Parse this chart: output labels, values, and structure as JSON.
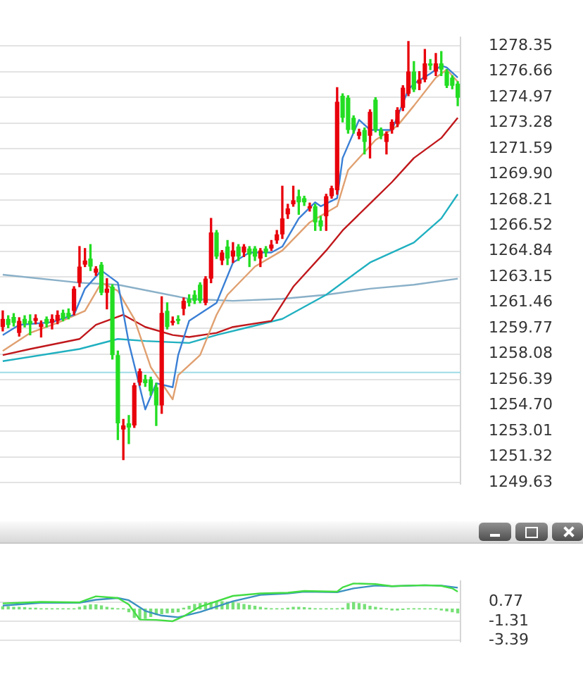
{
  "chart_data": [
    {
      "type": "candlestick",
      "categories": [
        null,
        null,
        null,
        null,
        null,
        null,
        null,
        null,
        null,
        null,
        null,
        null,
        null,
        null,
        null,
        null,
        null,
        null,
        null,
        null,
        null,
        null,
        null,
        null,
        null,
        null,
        null,
        null,
        null,
        null,
        null,
        null,
        null,
        null,
        null,
        null,
        null,
        null,
        null,
        null,
        null,
        null,
        null,
        null,
        null,
        null,
        null,
        null,
        null,
        null,
        null,
        null,
        null,
        null,
        null,
        null,
        null,
        null,
        null,
        null,
        null,
        null,
        null,
        null,
        null,
        null,
        null,
        null,
        null,
        null,
        null,
        null,
        null,
        null,
        null,
        null,
        null,
        null,
        null,
        null,
        null,
        null,
        null,
        null
      ],
      "ohlc": [
        [
          1259.86,
          1260.92,
          1259.6,
          1260.39
        ],
        [
          1260.39,
          1260.6,
          1259.81,
          1259.99
        ],
        [
          1260.52,
          1260.74,
          1259.92,
          1260.13
        ],
        [
          1259.47,
          1260.47,
          1259.26,
          1260.26
        ],
        [
          1260.39,
          1260.6,
          1259.86,
          1260.07
        ],
        [
          1260.26,
          1260.66,
          1259.34,
          1260.07
        ],
        [
          1260.26,
          1260.66,
          1260.07,
          1260.45
        ],
        [
          1259.86,
          1260.26,
          1259.2,
          1260.07
        ],
        [
          1260.39,
          1260.52,
          1259.86,
          1260.07
        ],
        [
          1260.13,
          1260.66,
          1259.73,
          1260.39
        ],
        [
          1260.26,
          1260.92,
          1260.07,
          1260.66
        ],
        [
          1260.79,
          1260.97,
          1260.26,
          1260.39
        ],
        [
          1260.79,
          1261.05,
          1260.39,
          1260.52
        ],
        [
          1260.92,
          1262.51,
          1260.66,
          1262.38
        ],
        [
          1262.77,
          1265.15,
          1262.51,
          1263.83
        ],
        [
          1263.96,
          1265.02,
          1263.83,
          1264.23
        ],
        [
          1264.36,
          1265.28,
          1263.57,
          1263.83
        ],
        [
          1263.43,
          1263.83,
          1263.25,
          1263.7
        ],
        [
          1263.96,
          1264.1,
          1261.98,
          1262.11
        ],
        [
          1262.11,
          1263.04,
          1261.05,
          1262.38
        ],
        [
          1262.51,
          1262.64,
          1257.75,
          1258.01
        ],
        [
          1258.01,
          1258.28,
          1252.46,
          1253.52
        ],
        [
          1253.12,
          1253.78,
          1251.14,
          1253.38
        ],
        [
          1253.52,
          1254.04,
          1252.19,
          1253.25
        ],
        [
          1253.38,
          1256.16,
          1253.25,
          1256.03
        ],
        [
          1256.21,
          1257.09,
          1256.03,
          1256.95
        ],
        [
          1256.42,
          1256.69,
          1255.95,
          1256.16
        ],
        [
          1256.42,
          1256.56,
          1255.37,
          1255.63
        ],
        [
          1255.9,
          1256.16,
          1253.38,
          1254.71
        ],
        [
          1254.71,
          1261.85,
          1254.18,
          1260.79
        ],
        [
          1260.92,
          1261.45,
          1259.73,
          1259.86
        ],
        [
          1260.13,
          1260.52,
          1259.99,
          1260.26
        ],
        [
          1260.39,
          1260.6,
          1260.07,
          1260.26
        ],
        [
          1261.05,
          1261.77,
          1260.66,
          1261.58
        ],
        [
          1261.71,
          1261.98,
          1261.24,
          1261.45
        ],
        [
          1261.98,
          1262.24,
          1261.4,
          1261.58
        ],
        [
          1262.64,
          1262.77,
          1261.45,
          1261.58
        ],
        [
          1261.45,
          1263.17,
          1261.32,
          1263.04
        ],
        [
          1263.04,
          1267.0,
          1262.77,
          1266.08
        ],
        [
          1266.08,
          1266.21,
          1264.36,
          1264.49
        ],
        [
          1264.23,
          1264.89,
          1263.96,
          1264.76
        ],
        [
          1265.15,
          1265.55,
          1263.96,
          1264.36
        ],
        [
          1264.49,
          1265.41,
          1264.1,
          1264.89
        ],
        [
          1265.15,
          1265.28,
          1264.23,
          1264.49
        ],
        [
          1264.76,
          1265.28,
          1264.49,
          1265.15
        ],
        [
          1265.02,
          1265.15,
          1263.83,
          1264.62
        ],
        [
          1265.02,
          1265.15,
          1264.23,
          1264.49
        ],
        [
          1264.36,
          1265.02,
          1263.83,
          1264.89
        ],
        [
          1265.02,
          1265.15,
          1264.49,
          1264.76
        ],
        [
          1265.02,
          1265.55,
          1264.89,
          1265.28
        ],
        [
          1265.55,
          1266.21,
          1265.36,
          1265.95
        ],
        [
          1265.95,
          1269.12,
          1265.68,
          1267.0
        ],
        [
          1267.27,
          1267.93,
          1267.0,
          1267.66
        ],
        [
          1267.93,
          1269.12,
          1267.8,
          1268.19
        ],
        [
          1268.46,
          1268.86,
          1267.27,
          1268.06
        ],
        [
          1268.33,
          1268.46,
          1267.85,
          1268.06
        ],
        [
          1267.66,
          1268.01,
          1267.48,
          1267.8
        ],
        [
          1267.8,
          1267.93,
          1266.21,
          1266.74
        ],
        [
          1266.87,
          1267.14,
          1266.21,
          1266.47
        ],
        [
          1267.14,
          1268.59,
          1266.21,
          1268.46
        ],
        [
          1268.46,
          1269.12,
          1268.33,
          1268.99
        ],
        [
          1268.86,
          1275.6,
          1268.59,
          1274.67
        ],
        [
          1275.07,
          1275.2,
          1273.35,
          1273.62
        ],
        [
          1274.94,
          1275.07,
          1272.61,
          1272.82
        ],
        [
          1273.62,
          1273.75,
          1272.61,
          1272.82
        ],
        [
          1272.43,
          1272.87,
          1272.24,
          1272.69
        ],
        [
          1272.82,
          1272.95,
          1271.24,
          1272.03
        ],
        [
          1272.43,
          1274.14,
          1270.97,
          1274.01
        ],
        [
          1274.81,
          1274.94,
          1272.69,
          1272.82
        ],
        [
          1272.82,
          1272.95,
          1272.24,
          1272.43
        ],
        [
          1272.03,
          1272.69,
          1271.24,
          1272.56
        ],
        [
          1272.82,
          1273.48,
          1272.61,
          1273.35
        ],
        [
          1273.22,
          1274.28,
          1273.03,
          1274.14
        ],
        [
          1274.28,
          1275.73,
          1274.09,
          1275.6
        ],
        [
          1275.2,
          1278.64,
          1275.07,
          1276.66
        ],
        [
          1276.66,
          1277.32,
          1275.34,
          1275.47
        ],
        [
          1275.86,
          1276.66,
          1275.47,
          1276.13
        ],
        [
          1276.13,
          1278.11,
          1275.99,
          1277.19
        ],
        [
          1277.19,
          1277.45,
          1276.79,
          1277.05
        ],
        [
          1276.66,
          1277.85,
          1276.39,
          1277.19
        ],
        [
          1277.19,
          1277.98,
          1276.39,
          1276.79
        ],
        [
          1276.66,
          1276.79,
          1275.6,
          1275.73
        ],
        [
          1276.26,
          1276.39,
          1275.52,
          1275.73
        ],
        [
          1275.86,
          1275.99,
          1274.41,
          1274.94
        ]
      ],
      "colors": [
        "#e8000b",
        "#22dd22",
        "#22dd22",
        "#e8000b",
        "#22dd22",
        "#22dd22",
        "#e8000b",
        "#e8000b",
        "#22dd22",
        "#e8000b",
        "#e8000b",
        "#22dd22",
        "#22dd22",
        "#e8000b",
        "#e8000b",
        "#e8000b",
        "#22dd22",
        "#e8000b",
        "#22dd22",
        "#e8000b",
        "#22dd22",
        "#22dd22",
        "#e8000b",
        "#22dd22",
        "#e8000b",
        "#e8000b",
        "#22dd22",
        "#22dd22",
        "#22dd22",
        "#e8000b",
        "#22dd22",
        "#e8000b",
        "#22dd22",
        "#e8000b",
        "#22dd22",
        "#22dd22",
        "#22dd22",
        "#e8000b",
        "#e8000b",
        "#22dd22",
        "#e8000b",
        "#22dd22",
        "#e8000b",
        "#22dd22",
        "#e8000b",
        "#22dd22",
        "#22dd22",
        "#e8000b",
        "#22dd22",
        "#e8000b",
        "#e8000b",
        "#e8000b",
        "#e8000b",
        "#e8000b",
        "#22dd22",
        "#22dd22",
        "#e8000b",
        "#22dd22",
        "#22dd22",
        "#e8000b",
        "#e8000b",
        "#e8000b",
        "#22dd22",
        "#22dd22",
        "#22dd22",
        "#e8000b",
        "#22dd22",
        "#e8000b",
        "#22dd22",
        "#22dd22",
        "#e8000b",
        "#e8000b",
        "#e8000b",
        "#e8000b",
        "#e8000b",
        "#22dd22",
        "#e8000b",
        "#e8000b",
        "#22dd22",
        "#e8000b",
        "#22dd22",
        "#22dd22",
        "#22dd22",
        "#22dd22"
      ],
      "series": [
        {
          "type": "line",
          "color": "#3a7fd5",
          "values": [
            1259.33,
            null,
            null,
            1260.0,
            null,
            null,
            null,
            null,
            null,
            1260.18,
            null,
            null,
            null,
            1260.66,
            null,
            1262.38,
            null,
            null,
            1263.57,
            null,
            null,
            1262.77,
            null,
            1258.81,
            null,
            null,
            1254.44,
            null,
            1256.16,
            null,
            null,
            1255.9,
            1258.01,
            null,
            1260.26,
            null,
            null,
            null,
            null,
            1261.45,
            null,
            null,
            1264.1,
            null,
            null,
            1264.76,
            null,
            null,
            null,
            1264.76,
            null,
            1265.15,
            null,
            null,
            1267.0,
            null,
            null,
            1268.06,
            1267.8,
            null,
            null,
            1268.33,
            1270.97,
            null,
            null,
            1273.48,
            null,
            1272.82,
            null,
            1272.82,
            null,
            1272.82,
            null,
            null,
            1275.47,
            1275.86,
            null,
            null,
            1276.52,
            null,
            1277.05,
            1276.92,
            null,
            1276.26
          ]
        },
        {
          "type": "line",
          "color": "#e0a070",
          "values": [
            1258.28,
            null,
            null,
            null,
            null,
            1259.47,
            null,
            null,
            null,
            null,
            1260.13,
            null,
            null,
            null,
            null,
            1260.92,
            null,
            null,
            1262.77,
            null,
            null,
            1262.24,
            null,
            null,
            1260.39,
            null,
            null,
            1257.22,
            null,
            null,
            null,
            1255.1,
            1256.69,
            null,
            null,
            null,
            1258.01,
            null,
            null,
            1260.66,
            null,
            1261.98,
            null,
            null,
            null,
            null,
            1263.83,
            null,
            null,
            null,
            null,
            1264.89,
            null,
            null,
            null,
            null,
            1266.74,
            null,
            null,
            null,
            null,
            1267.8,
            null,
            1270.18,
            null,
            null,
            null,
            null,
            1272.16,
            null,
            null,
            null,
            1273.09,
            null,
            null,
            1274.41,
            null,
            null,
            null,
            1276.26,
            null,
            1276.79,
            null,
            1275.99
          ]
        },
        {
          "type": "line",
          "color": "#c0181c",
          "values": [
            1258.01,
            null,
            null,
            null,
            null,
            1258.41,
            null,
            null,
            null,
            null,
            null,
            null,
            null,
            null,
            1259.07,
            null,
            null,
            1260.0,
            null,
            null,
            null,
            null,
            1260.66,
            null,
            null,
            null,
            1259.86,
            null,
            null,
            null,
            null,
            1259.33,
            null,
            null,
            1259.2,
            null,
            null,
            null,
            null,
            1259.47,
            null,
            null,
            1259.86,
            null,
            null,
            null,
            null,
            null,
            null,
            1260.26,
            null,
            null,
            null,
            1262.51,
            null,
            null,
            null,
            null,
            null,
            1264.89,
            null,
            null,
            1266.21,
            null,
            null,
            null,
            null,
            null,
            1268.33,
            null,
            null,
            1269.39,
            null,
            null,
            null,
            1270.97,
            null,
            null,
            null,
            null,
            1272.29,
            null,
            null,
            1273.62
          ]
        },
        {
          "type": "line",
          "color": "#20b0c0",
          "values": [
            1257.61,
            null,
            null,
            null,
            null,
            null,
            null,
            null,
            null,
            null,
            null,
            null,
            null,
            null,
            1258.41,
            null,
            null,
            null,
            null,
            null,
            null,
            1259.07,
            null,
            null,
            null,
            null,
            1258.94,
            null,
            null,
            null,
            null,
            null,
            null,
            null,
            1258.81,
            null,
            null,
            null,
            null,
            1259.33,
            null,
            null,
            null,
            null,
            null,
            1259.86,
            null,
            null,
            null,
            null,
            null,
            1260.39,
            null,
            null,
            null,
            null,
            null,
            null,
            null,
            1261.98,
            null,
            null,
            null,
            null,
            null,
            null,
            null,
            1264.1,
            null,
            null,
            null,
            null,
            null,
            null,
            null,
            1265.41,
            null,
            null,
            null,
            null,
            1267.0,
            null,
            null,
            1268.59
          ]
        },
        {
          "type": "line",
          "color": "#8ab0c8",
          "values": [
            1263.3,
            null,
            null,
            null,
            null,
            null,
            null,
            null,
            null,
            null,
            null,
            null,
            null,
            null,
            1262.77,
            null,
            null,
            null,
            null,
            null,
            null,
            1262.64,
            null,
            null,
            null,
            null,
            null,
            null,
            null,
            null,
            null,
            null,
            null,
            null,
            1261.71,
            null,
            null,
            null,
            null,
            null,
            null,
            null,
            1261.58,
            null,
            null,
            null,
            null,
            null,
            null,
            null,
            null,
            1261.71,
            null,
            null,
            null,
            null,
            null,
            null,
            null,
            1261.98,
            null,
            null,
            null,
            null,
            null,
            null,
            null,
            1262.38,
            null,
            null,
            null,
            null,
            null,
            null,
            null,
            1262.64,
            null,
            null,
            null,
            null,
            null,
            null,
            null,
            1263.04
          ]
        }
      ],
      "ref_lines": [
        {
          "axis": "y",
          "value": 1256.87,
          "color": "#9edbe6"
        }
      ],
      "ylim": [
        1249.55,
        1278.9
      ],
      "yticks": [
        1278.35,
        1276.66,
        1274.97,
        1273.28,
        1271.59,
        {
          "value": 1269.9,
          "label": "1269.90"
        },
        1268.21,
        1266.52,
        1264.84,
        1263.15,
        1261.46,
        1259.77,
        1258.08,
        1256.39,
        {
          "value": 1254.7,
          "label": "1254.70"
        },
        1253.01,
        1251.32,
        1249.63
      ],
      "grid": "y",
      "tick_labels": "y"
    },
    {
      "type": "line",
      "categories": [
        null,
        null,
        null,
        null,
        null,
        null,
        null,
        null,
        null,
        null,
        null,
        null,
        null,
        null,
        null,
        null,
        null,
        null,
        null,
        null,
        null,
        null,
        null,
        null,
        null,
        null,
        null,
        null,
        null,
        null,
        null,
        null,
        null,
        null,
        null,
        null,
        null,
        null,
        null,
        null,
        null,
        null,
        null,
        null,
        null,
        null,
        null,
        null,
        null,
        null,
        null,
        null,
        null,
        null,
        null,
        null,
        null,
        null,
        null,
        null,
        null,
        null,
        null,
        null,
        null,
        null,
        null,
        null,
        null,
        null,
        null,
        null,
        null,
        null,
        null,
        null,
        null,
        null,
        null,
        null,
        null,
        null,
        null,
        null
      ],
      "series": [
        {
          "color": "#44dd44",
          "values": [
            0.61,
            null,
            null,
            null,
            null,
            null,
            null,
            0.77,
            null,
            null,
            null,
            null,
            null,
            null,
            0.72,
            null,
            null,
            1.37,
            null,
            null,
            null,
            1.19,
            null,
            0.49,
            null,
            -1.13,
            null,
            null,
            -1.17,
            null,
            null,
            -1.31,
            null,
            -0.78,
            null,
            null,
            0.26,
            null,
            null,
            null,
            null,
            null,
            1.42,
            null,
            null,
            null,
            null,
            1.69,
            null,
            null,
            null,
            null,
            1.76,
            null,
            null,
            1.95,
            null,
            null,
            null,
            null,
            null,
            1.88,
            2.34,
            null,
            2.76,
            null,
            null,
            null,
            2.69,
            null,
            null,
            2.46,
            null,
            null,
            2.53,
            null,
            null,
            2.57,
            null,
            null,
            2.5,
            null,
            2.23,
            1.88
          ]
        },
        {
          "color": "#3a90c0",
          "values": [
            0.38,
            null,
            null,
            null,
            null,
            null,
            null,
            0.68,
            null,
            null,
            null,
            null,
            null,
            null,
            0.68,
            null,
            null,
            1.0,
            null,
            null,
            null,
            1.19,
            null,
            0.95,
            null,
            null,
            -0.2,
            null,
            null,
            -0.71,
            null,
            null,
            -0.89,
            null,
            null,
            null,
            -0.32,
            null,
            null,
            null,
            null,
            null,
            0.84,
            null,
            null,
            null,
            null,
            1.53,
            null,
            null,
            null,
            null,
            1.69,
            null,
            null,
            1.88,
            null,
            null,
            null,
            null,
            null,
            1.81,
            null,
            null,
            2.23,
            null,
            null,
            null,
            2.53,
            null,
            null,
            2.46,
            null,
            null,
            null,
            null,
            null,
            2.57,
            null,
            null,
            2.53,
            null,
            null,
            2.3
          ]
        },
        {
          "type": "bar",
          "color": "#77e077",
          "values": [
            0.25,
            0.25,
            0.2,
            0.2,
            0.15,
            0.1,
            0.1,
            0.05,
            0.05,
            0.05,
            0.05,
            0.05,
            0.05,
            0.05,
            0.2,
            0.35,
            0.45,
            0.45,
            0.35,
            0.2,
            0.1,
            0.05,
            0.05,
            -0.3,
            -0.9,
            -1.1,
            -1.0,
            -0.8,
            -0.6,
            -0.5,
            -0.4,
            -0.35,
            -0.3,
            0.1,
            0.3,
            0.5,
            0.6,
            0.7,
            0.7,
            0.8,
            0.8,
            0.75,
            0.7,
            0.6,
            0.5,
            0.4,
            0.3,
            0.2,
            0.1,
            0.05,
            0.05,
            0.05,
            0.1,
            0.2,
            0.2,
            0.15,
            0.1,
            0.05,
            0.05,
            0.05,
            0.05,
            0.05,
            0.1,
            0.6,
            0.7,
            0.6,
            0.5,
            0.3,
            0.2,
            0.1,
            0.05,
            -0.1,
            -0.1,
            -0.05,
            0.05,
            0.05,
            0.05,
            0.05,
            0.05,
            0.05,
            -0.1,
            -0.2,
            -0.3,
            -0.4
          ]
        }
      ],
      "ylim": [
        -3.5,
        3.0
      ],
      "yticks": [
        0.77,
        -1.31,
        -3.39
      ],
      "grid": "y",
      "tick_labels": "y"
    }
  ]
}
